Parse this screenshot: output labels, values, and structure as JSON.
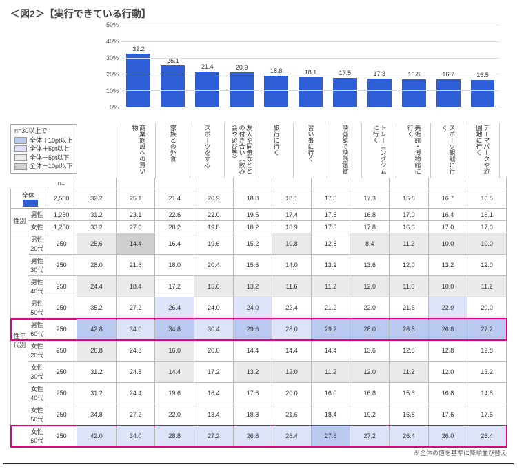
{
  "title": "＜図2＞【実行できている行動】",
  "chart": {
    "type": "bar",
    "ylim": [
      0,
      50
    ],
    "ytick_step": 10,
    "bar_color": "#2e5fd6",
    "grid_color": "#dddddd",
    "categories": [
      "商業施設への買い物",
      "家族との外食",
      "スポーツをする",
      "友人や同僚などとの付き合い（飲み会や遊び等）",
      "旅行に行く",
      "習い事に行く",
      "映画館で映画鑑賞",
      "トレーニングジムに行く",
      "美術館・博物館に行く",
      "スポーツ観戦に行く",
      "テーマパークや遊園地に行く"
    ],
    "values": [
      32.2,
      25.1,
      21.4,
      20.9,
      18.8,
      18.1,
      17.5,
      17.3,
      16.8,
      16.7,
      16.5
    ]
  },
  "legend": {
    "title": "n=30以上で",
    "items": [
      {
        "label": "全体＋10pt以上",
        "color": "#b9c9f0"
      },
      {
        "label": "全体＋5pt以上",
        "color": "#dde4f7"
      },
      {
        "label": "全体－5pt以下",
        "color": "#eaeaea"
      },
      {
        "label": "全体－10pt以下",
        "color": "#cfcfcf"
      }
    ]
  },
  "n_label": "n=",
  "total_label": "全体",
  "groups": [
    {
      "name": "",
      "rows": [
        {
          "label": "全体",
          "is_total": true,
          "n": "2,500",
          "cells": [
            [
              "32.2",
              ""
            ],
            [
              "25.1",
              ""
            ],
            [
              "21.4",
              ""
            ],
            [
              "20.9",
              ""
            ],
            [
              "18.8",
              ""
            ],
            [
              "18.1",
              ""
            ],
            [
              "17.5",
              ""
            ],
            [
              "17.3",
              ""
            ],
            [
              "16.8",
              ""
            ],
            [
              "16.7",
              ""
            ],
            [
              "16.5",
              ""
            ]
          ]
        }
      ]
    },
    {
      "name": "性別",
      "rows": [
        {
          "label": "男性",
          "n": "1,250",
          "cells": [
            [
              "31.2",
              ""
            ],
            [
              "23.1",
              ""
            ],
            [
              "22.6",
              ""
            ],
            [
              "22.0",
              ""
            ],
            [
              "19.5",
              ""
            ],
            [
              "17.4",
              ""
            ],
            [
              "17.5",
              ""
            ],
            [
              "16.8",
              ""
            ],
            [
              "17.0",
              ""
            ],
            [
              "16.4",
              ""
            ],
            [
              "16.1",
              ""
            ]
          ]
        },
        {
          "label": "女性",
          "n": "1,250",
          "cells": [
            [
              "33.2",
              ""
            ],
            [
              "27.0",
              ""
            ],
            [
              "20.2",
              ""
            ],
            [
              "19.8",
              ""
            ],
            [
              "18.2",
              ""
            ],
            [
              "18.9",
              ""
            ],
            [
              "17.5",
              ""
            ],
            [
              "17.8",
              ""
            ],
            [
              "16.6",
              ""
            ],
            [
              "17.0",
              ""
            ],
            [
              "17.0",
              ""
            ]
          ]
        }
      ]
    },
    {
      "name": "性年代別",
      "rows": [
        {
          "label": "男性20代",
          "n": "250",
          "cells": [
            [
              "25.6",
              "lo1"
            ],
            [
              "14.4",
              "lo2"
            ],
            [
              "16.4",
              ""
            ],
            [
              "19.6",
              ""
            ],
            [
              "15.2",
              ""
            ],
            [
              "10.8",
              "lo1"
            ],
            [
              "12.8",
              ""
            ],
            [
              "8.4",
              "lo1"
            ],
            [
              "11.2",
              "lo1"
            ],
            [
              "10.0",
              "lo1"
            ],
            [
              "10.0",
              "lo1"
            ]
          ]
        },
        {
          "label": "男性30代",
          "n": "250",
          "cells": [
            [
              "28.0",
              ""
            ],
            [
              "21.6",
              ""
            ],
            [
              "18.0",
              ""
            ],
            [
              "20.4",
              ""
            ],
            [
              "15.6",
              ""
            ],
            [
              "14.0",
              ""
            ],
            [
              "13.2",
              ""
            ],
            [
              "13.6",
              ""
            ],
            [
              "12.0",
              ""
            ],
            [
              "13.2",
              ""
            ],
            [
              "12.0",
              ""
            ]
          ]
        },
        {
          "label": "男性40代",
          "n": "250",
          "cells": [
            [
              "24.4",
              "lo1"
            ],
            [
              "18.4",
              "lo1"
            ],
            [
              "17.2",
              ""
            ],
            [
              "15.6",
              "lo1"
            ],
            [
              "13.2",
              "lo1"
            ],
            [
              "11.6",
              "lo1"
            ],
            [
              "11.2",
              "lo1"
            ],
            [
              "12.0",
              "lo1"
            ],
            [
              "11.6",
              "lo1"
            ],
            [
              "10.0",
              "lo1"
            ],
            [
              "11.2",
              "lo1"
            ]
          ]
        },
        {
          "label": "男性50代",
          "n": "250",
          "cells": [
            [
              "35.2",
              ""
            ],
            [
              "27.2",
              ""
            ],
            [
              "26.4",
              "hi1"
            ],
            [
              "24.0",
              ""
            ],
            [
              "24.0",
              "hi1"
            ],
            [
              "22.4",
              ""
            ],
            [
              "21.2",
              ""
            ],
            [
              "22.0",
              ""
            ],
            [
              "21.6",
              ""
            ],
            [
              "22.0",
              "hi1"
            ],
            [
              "20.0",
              ""
            ]
          ]
        },
        {
          "label": "男性60代",
          "n": "250",
          "highlight": true,
          "cells": [
            [
              "42.8",
              "hi2"
            ],
            [
              "34.0",
              "hi1"
            ],
            [
              "34.8",
              "hi2"
            ],
            [
              "30.4",
              "hi1"
            ],
            [
              "29.6",
              "hi2"
            ],
            [
              "28.0",
              "hi1"
            ],
            [
              "29.2",
              "hi2"
            ],
            [
              "28.0",
              "hi2"
            ],
            [
              "28.8",
              "hi2"
            ],
            [
              "26.8",
              "hi2"
            ],
            [
              "27.2",
              "hi2"
            ]
          ]
        },
        {
          "label": "女性20代",
          "n": "250",
          "cells": [
            [
              "26.8",
              "lo1"
            ],
            [
              "24.8",
              ""
            ],
            [
              "16.0",
              "lo1"
            ],
            [
              "20.0",
              ""
            ],
            [
              "14.4",
              ""
            ],
            [
              "14.4",
              ""
            ],
            [
              "14.4",
              ""
            ],
            [
              "13.6",
              ""
            ],
            [
              "12.8",
              ""
            ],
            [
              "12.8",
              ""
            ],
            [
              "12.8",
              ""
            ]
          ]
        },
        {
          "label": "女性30代",
          "n": "250",
          "cells": [
            [
              "31.2",
              ""
            ],
            [
              "24.8",
              ""
            ],
            [
              "14.4",
              "lo1"
            ],
            [
              "17.2",
              ""
            ],
            [
              "13.2",
              "lo1"
            ],
            [
              "12.0",
              "lo1"
            ],
            [
              "11.2",
              "lo1"
            ],
            [
              "12.0",
              "lo1"
            ],
            [
              "11.2",
              "lo1"
            ],
            [
              "12.0",
              ""
            ],
            [
              "13.2",
              ""
            ]
          ]
        },
        {
          "label": "女性40代",
          "n": "250",
          "cells": [
            [
              "31.2",
              ""
            ],
            [
              "24.4",
              ""
            ],
            [
              "19.6",
              ""
            ],
            [
              "16.4",
              ""
            ],
            [
              "17.6",
              ""
            ],
            [
              "20.0",
              ""
            ],
            [
              "16.0",
              ""
            ],
            [
              "16.8",
              ""
            ],
            [
              "15.6",
              ""
            ],
            [
              "16.8",
              ""
            ],
            [
              "14.8",
              ""
            ]
          ]
        },
        {
          "label": "女性50代",
          "n": "250",
          "cells": [
            [
              "34.8",
              ""
            ],
            [
              "27.2",
              ""
            ],
            [
              "22.0",
              ""
            ],
            [
              "18.4",
              ""
            ],
            [
              "18.8",
              ""
            ],
            [
              "21.6",
              ""
            ],
            [
              "18.4",
              ""
            ],
            [
              "19.2",
              ""
            ],
            [
              "16.8",
              ""
            ],
            [
              "17.6",
              ""
            ],
            [
              "17.6",
              ""
            ]
          ]
        },
        {
          "label": "女性60代",
          "n": "250",
          "highlight": true,
          "cells": [
            [
              "42.0",
              "hi1"
            ],
            [
              "34.0",
              "hi1"
            ],
            [
              "28.8",
              "hi1"
            ],
            [
              "27.2",
              "hi1"
            ],
            [
              "26.8",
              "hi1"
            ],
            [
              "26.4",
              "hi1"
            ],
            [
              "27.6",
              "hi2"
            ],
            [
              "27.2",
              "hi1"
            ],
            [
              "26.4",
              "hi1"
            ],
            [
              "26.0",
              "hi1"
            ],
            [
              "26.4",
              "hi1"
            ]
          ]
        }
      ]
    }
  ],
  "footnote": "※全体の値を基準に降順並び替え"
}
